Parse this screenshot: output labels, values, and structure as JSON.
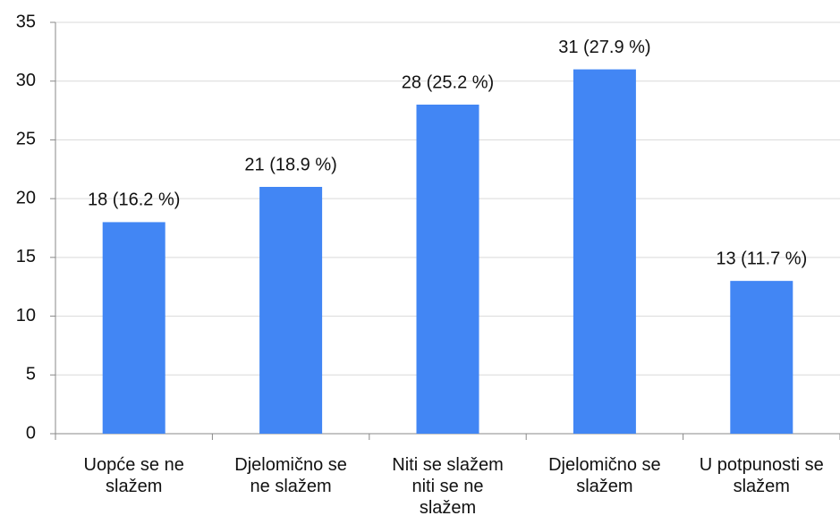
{
  "chart_data": {
    "type": "bar",
    "categories": [
      "Uopće se ne slažem",
      "Djelomično se ne slažem",
      "Niti se slažem niti se ne slažem",
      "Djelomično se slažem",
      "U potpunosti se slažem"
    ],
    "values": [
      18,
      21,
      28,
      31,
      13
    ],
    "value_labels": [
      "18 (16.2 %)",
      "21 (18.9 %)",
      "28 (25.2 %)",
      "31 (27.9 %)",
      "13 (11.7 %)"
    ],
    "color": "#4286f4",
    "ylim": [
      0,
      35
    ],
    "yticks": [
      0,
      5,
      10,
      15,
      20,
      25,
      30,
      35
    ],
    "grid": true
  }
}
